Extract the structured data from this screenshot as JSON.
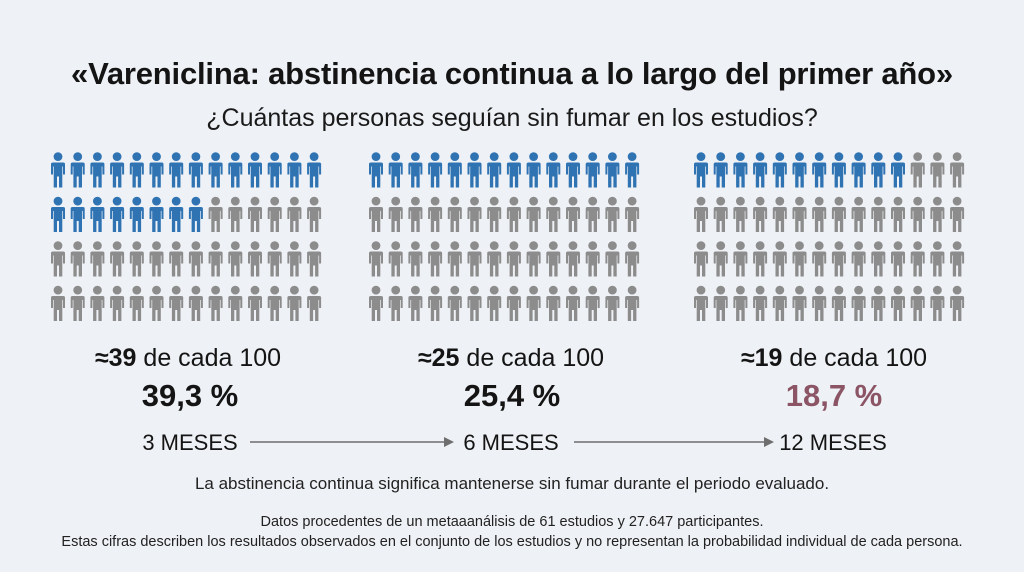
{
  "title": "«Vareniclina: abstinencia continua a lo largo del primer año»",
  "subtitle": "¿Cuántas personas seguían sin fumar en los estudios?",
  "colors": {
    "filled": "#2f73b3",
    "empty": "#8c8c8c",
    "highlight_pct": "#8c5566",
    "background": "#eef1f5"
  },
  "icon": "person-icon",
  "chart_data": {
    "type": "pictogram",
    "total": 100,
    "groups": [
      {
        "period": "3 MESES",
        "count_prefix": "≈39",
        "count_suffix": " de cada 100",
        "filled": 39,
        "percent": 39.3,
        "percent_label": "39,3 %"
      },
      {
        "period": "6 MESES",
        "count_prefix": "≈25",
        "count_suffix": " de cada 100",
        "filled": 25,
        "percent": 25.4,
        "percent_label": "25,4 %"
      },
      {
        "period": "12 MESES",
        "count_prefix": "≈19",
        "count_suffix": " de cada 100",
        "filled": 19,
        "percent": 18.7,
        "percent_label": "18,7 %"
      }
    ]
  },
  "note": "La abstinencia continua significa mantenerse sin fumar durante el periodo evaluado.",
  "source_lines": [
    "Datos procedentes de un metaaanálisis de 61 estudios y 27.647 participantes.",
    "Estas cifras describen los resultados observados en el conjunto de los estudios y no representan la probabilidad individual de cada persona."
  ]
}
